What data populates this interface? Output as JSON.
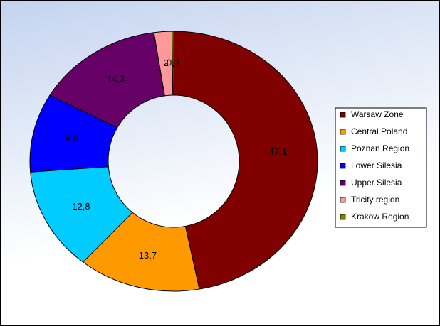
{
  "chart_data": {
    "type": "donut",
    "categories": [
      "Warsaw Zone",
      "Central Poland",
      "Poznan Region",
      "Lower Silesia",
      "Upper Silesia",
      "Tricity region",
      "Krakow Region"
    ],
    "values": [
      47.1,
      13.7,
      12.8,
      9.8,
      14.3,
      2,
      0.2
    ],
    "value_labels": [
      "47,1",
      "13,7",
      "12,8",
      "9,8",
      "14,3",
      "2",
      "0,2"
    ],
    "colors": [
      "#800000",
      "#ff9900",
      "#00ccff",
      "#0000ff",
      "#660066",
      "#ff9999",
      "#808000"
    ],
    "legend": "right"
  }
}
